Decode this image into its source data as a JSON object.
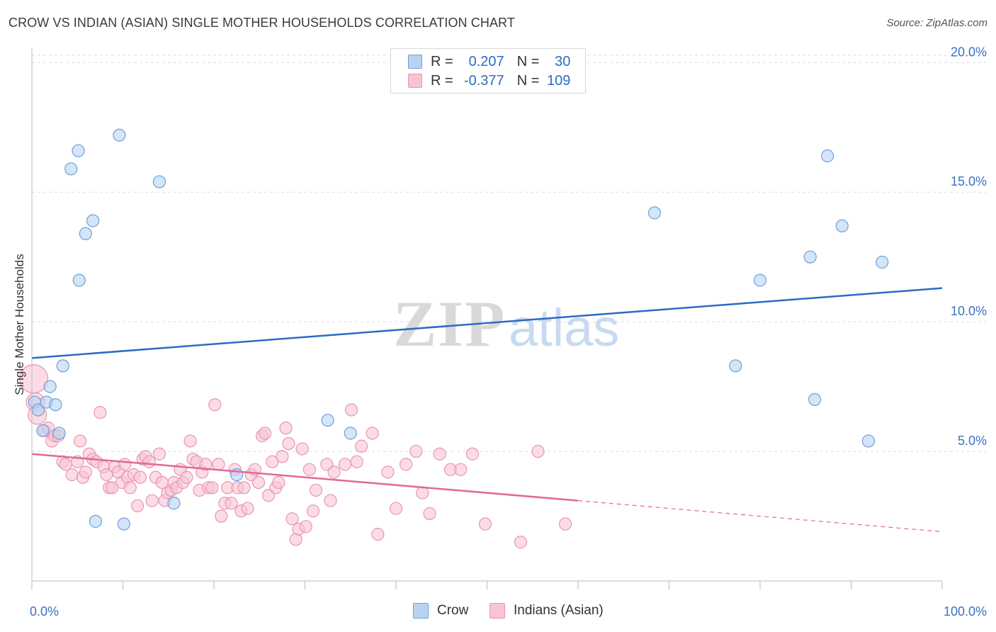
{
  "title": "CROW VS INDIAN (ASIAN) SINGLE MOTHER HOUSEHOLDS CORRELATION CHART",
  "source": "Source: ZipAtlas.com",
  "watermark": {
    "zip": "ZIP",
    "atlas": "atlas"
  },
  "legend": {
    "rows": [
      {
        "r_label": "R =",
        "r_value": "0.207",
        "n_label": "N =",
        "n_value": "30"
      },
      {
        "r_label": "R =",
        "r_value": "-0.377",
        "n_label": "N =",
        "n_value": "109"
      }
    ]
  },
  "colors": {
    "crow_fill": "#b8d3f2",
    "crow_stroke": "#6f9fd8",
    "crow_line": "#2b6cc4",
    "indian_fill": "#f8c4d4",
    "indian_stroke": "#e896b0",
    "indian_line": "#e0689a",
    "axis_text": "#3b73c4",
    "grid": "#dddddd"
  },
  "chart_data": {
    "type": "scatter",
    "ylabel": "Single Mother Households",
    "xlim": [
      0,
      100
    ],
    "ylim": [
      0,
      20.5
    ],
    "x_tick_labels": [
      "0.0%",
      "100.0%"
    ],
    "y_ticks": [
      5,
      10,
      15,
      20
    ],
    "y_tick_labels": [
      "5.0%",
      "10.0%",
      "15.0%",
      "20.0%"
    ],
    "grid": true,
    "series": [
      {
        "name": "Crow",
        "points": [
          [
            0.3,
            6.9
          ],
          [
            0.7,
            6.6
          ],
          [
            1.2,
            5.8
          ],
          [
            1.6,
            6.9
          ],
          [
            2.0,
            7.5
          ],
          [
            2.6,
            6.8
          ],
          [
            3.0,
            5.7
          ],
          [
            3.4,
            8.3
          ],
          [
            4.3,
            15.9
          ],
          [
            5.1,
            16.6
          ],
          [
            5.2,
            11.6
          ],
          [
            5.9,
            13.4
          ],
          [
            6.7,
            13.9
          ],
          [
            7.0,
            2.3
          ],
          [
            9.6,
            17.2
          ],
          [
            10.1,
            2.2
          ],
          [
            14.0,
            15.4
          ],
          [
            15.6,
            3.0
          ],
          [
            22.5,
            4.1
          ],
          [
            32.5,
            6.2
          ],
          [
            35.0,
            5.7
          ],
          [
            68.4,
            14.2
          ],
          [
            77.3,
            8.3
          ],
          [
            80.0,
            11.6
          ],
          [
            85.5,
            12.5
          ],
          [
            86.0,
            7.0
          ],
          [
            87.4,
            16.4
          ],
          [
            89.0,
            13.7
          ],
          [
            91.9,
            5.4
          ],
          [
            93.4,
            12.3
          ]
        ],
        "trend": {
          "x": [
            0,
            100
          ],
          "y": [
            8.6,
            11.3
          ],
          "solid_to": 100
        }
      },
      {
        "name": "Indians (Asian)",
        "points": [
          [
            0.2,
            7.8
          ],
          [
            0.4,
            6.9
          ],
          [
            0.6,
            6.4
          ],
          [
            1.4,
            5.8
          ],
          [
            1.8,
            5.9
          ],
          [
            2.2,
            5.4
          ],
          [
            2.5,
            5.6
          ],
          [
            2.9,
            5.6
          ],
          [
            3.4,
            4.6
          ],
          [
            3.7,
            4.5
          ],
          [
            4.4,
            4.1
          ],
          [
            5.0,
            4.6
          ],
          [
            5.3,
            5.4
          ],
          [
            5.6,
            4.0
          ],
          [
            5.9,
            4.2
          ],
          [
            6.3,
            4.9
          ],
          [
            6.7,
            4.7
          ],
          [
            7.1,
            4.6
          ],
          [
            7.5,
            6.5
          ],
          [
            7.9,
            4.4
          ],
          [
            8.2,
            4.1
          ],
          [
            8.5,
            3.6
          ],
          [
            8.8,
            3.6
          ],
          [
            9.1,
            4.4
          ],
          [
            9.5,
            4.2
          ],
          [
            9.9,
            3.8
          ],
          [
            10.2,
            4.5
          ],
          [
            10.5,
            4.0
          ],
          [
            10.8,
            3.6
          ],
          [
            11.2,
            4.1
          ],
          [
            11.6,
            2.9
          ],
          [
            11.9,
            4.0
          ],
          [
            12.2,
            4.7
          ],
          [
            12.5,
            4.8
          ],
          [
            12.9,
            4.6
          ],
          [
            13.2,
            3.1
          ],
          [
            13.6,
            4.0
          ],
          [
            14.0,
            4.9
          ],
          [
            14.3,
            3.8
          ],
          [
            14.6,
            3.1
          ],
          [
            14.9,
            3.4
          ],
          [
            15.3,
            3.5
          ],
          [
            15.6,
            3.8
          ],
          [
            15.9,
            3.6
          ],
          [
            16.3,
            4.3
          ],
          [
            16.6,
            3.8
          ],
          [
            17.0,
            4.0
          ],
          [
            17.4,
            5.4
          ],
          [
            17.7,
            4.7
          ],
          [
            18.1,
            4.6
          ],
          [
            18.4,
            3.5
          ],
          [
            18.7,
            4.2
          ],
          [
            19.1,
            4.5
          ],
          [
            19.4,
            3.6
          ],
          [
            19.8,
            3.6
          ],
          [
            20.1,
            6.8
          ],
          [
            20.5,
            4.5
          ],
          [
            20.8,
            2.5
          ],
          [
            21.2,
            3.0
          ],
          [
            21.5,
            3.6
          ],
          [
            21.9,
            3.0
          ],
          [
            22.3,
            4.3
          ],
          [
            22.6,
            3.6
          ],
          [
            23.0,
            2.7
          ],
          [
            23.3,
            3.6
          ],
          [
            23.7,
            2.8
          ],
          [
            24.1,
            4.1
          ],
          [
            24.5,
            4.3
          ],
          [
            24.9,
            3.8
          ],
          [
            25.3,
            5.6
          ],
          [
            25.6,
            5.7
          ],
          [
            26.0,
            3.3
          ],
          [
            26.4,
            4.6
          ],
          [
            26.8,
            3.6
          ],
          [
            27.1,
            3.8
          ],
          [
            27.5,
            4.8
          ],
          [
            27.9,
            5.9
          ],
          [
            28.2,
            5.3
          ],
          [
            28.6,
            2.4
          ],
          [
            29.0,
            1.6
          ],
          [
            29.3,
            2.0
          ],
          [
            29.7,
            5.1
          ],
          [
            30.1,
            2.1
          ],
          [
            30.5,
            4.3
          ],
          [
            30.9,
            2.7
          ],
          [
            31.2,
            3.5
          ],
          [
            32.4,
            4.5
          ],
          [
            32.8,
            3.1
          ],
          [
            33.2,
            4.2
          ],
          [
            34.4,
            4.5
          ],
          [
            35.1,
            6.6
          ],
          [
            35.7,
            4.6
          ],
          [
            36.2,
            5.2
          ],
          [
            37.4,
            5.7
          ],
          [
            38.0,
            1.8
          ],
          [
            39.1,
            4.2
          ],
          [
            40.0,
            2.8
          ],
          [
            41.1,
            4.5
          ],
          [
            42.2,
            5.0
          ],
          [
            42.9,
            3.4
          ],
          [
            43.7,
            2.6
          ],
          [
            44.8,
            4.9
          ],
          [
            46.0,
            4.3
          ],
          [
            47.1,
            4.3
          ],
          [
            48.4,
            4.9
          ],
          [
            49.8,
            2.2
          ],
          [
            53.7,
            1.5
          ],
          [
            55.6,
            5.0
          ],
          [
            58.6,
            2.2
          ]
        ],
        "trend": {
          "x": [
            0,
            100
          ],
          "y": [
            4.9,
            1.9
          ],
          "solid_to": 60
        }
      }
    ]
  },
  "bottom_legend": [
    {
      "label": "Crow"
    },
    {
      "label": "Indians (Asian)"
    }
  ]
}
